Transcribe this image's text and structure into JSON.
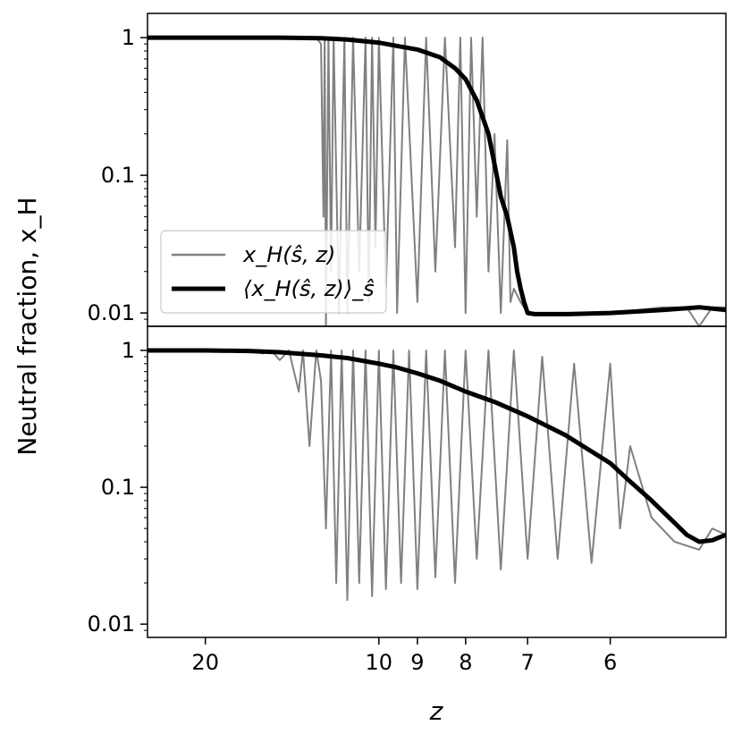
{
  "chart_data": [
    {
      "type": "line",
      "panel": "top",
      "yscale": "log",
      "ylim": [
        0.008,
        1.5
      ],
      "yticks": [
        0.01,
        0.1,
        1
      ],
      "ytick_labels": [
        "0.01",
        "0.1",
        "1"
      ],
      "ylabel": "Neutral fraction, x_H",
      "legend_placement": "lower-left",
      "series": [
        {
          "name": "x_H(ŝ, z)",
          "color": "#808080",
          "style": "thin",
          "x": [
            30,
            16,
            14,
            13.5,
            13,
            12.5,
            12.2,
            12.0,
            11.9,
            11.85,
            11.8,
            11.7,
            11.6,
            11.5,
            11.3,
            11.1,
            11.0,
            10.8,
            10.6,
            10.4,
            10.3,
            10.2,
            10.1,
            10.0,
            9.8,
            9.6,
            9.5,
            9.3,
            9.0,
            8.8,
            8.6,
            8.4,
            8.2,
            8.1,
            8.0,
            7.9,
            7.8,
            7.7,
            7.6,
            7.5,
            7.4,
            7.3,
            7.25,
            7.2,
            7.1,
            7.05,
            7.0,
            6.8,
            6.5,
            6.0,
            5.5,
            5.3,
            5.2,
            5.1,
            5.0
          ],
          "y": [
            1.0,
            1.0,
            1.0,
            0.99,
            1.0,
            0.98,
            1.0,
            0.9,
            0.05,
            1.0,
            0.008,
            1.0,
            0.02,
            1.0,
            0.01,
            1.0,
            0.01,
            1.0,
            0.02,
            1.0,
            0.012,
            1.0,
            0.03,
            1.0,
            0.015,
            1.0,
            0.01,
            1.0,
            0.012,
            1.0,
            0.02,
            1.0,
            0.03,
            1.0,
            0.01,
            1.0,
            0.05,
            1.0,
            0.02,
            0.2,
            0.01,
            0.18,
            0.012,
            0.015,
            0.012,
            0.011,
            0.01,
            0.01,
            0.01,
            0.01,
            0.011,
            0.011,
            0.008,
            0.011,
            0.011
          ]
        },
        {
          "name": "⟨x_H(ŝ, z)⟩_ŝ",
          "color": "#000000",
          "style": "thick",
          "x": [
            30,
            20,
            16,
            14,
            12,
            11,
            10,
            9.5,
            9.0,
            8.5,
            8.2,
            8.0,
            7.8,
            7.6,
            7.5,
            7.4,
            7.3,
            7.2,
            7.15,
            7.1,
            7.05,
            7.0,
            6.9,
            6.5,
            6.0,
            5.5,
            5.2,
            5.0
          ],
          "y": [
            1.0,
            1.0,
            1.0,
            1.0,
            0.99,
            0.97,
            0.92,
            0.87,
            0.82,
            0.72,
            0.6,
            0.5,
            0.35,
            0.2,
            0.12,
            0.07,
            0.05,
            0.03,
            0.02,
            0.015,
            0.012,
            0.01,
            0.0098,
            0.0098,
            0.01,
            0.0105,
            0.011,
            0.0105
          ]
        }
      ]
    },
    {
      "type": "line",
      "panel": "bottom",
      "yscale": "log",
      "ylim": [
        0.008,
        1.5
      ],
      "yticks": [
        0.01,
        0.1,
        1
      ],
      "ytick_labels": [
        "0.01",
        "0.1",
        "1"
      ],
      "xscale": "reciprocal",
      "xlim": [
        30,
        5.0
      ],
      "xticks": [
        20,
        10,
        9,
        8,
        7,
        6
      ],
      "xtick_labels": [
        "20",
        "10",
        "9",
        "8",
        "7",
        "6"
      ],
      "xlabel": "z",
      "series": [
        {
          "name": "x_H(ŝ, z)",
          "color": "#808080",
          "style": "thin",
          "x": [
            30,
            20,
            16,
            15,
            14.5,
            14,
            13.5,
            13,
            12.8,
            12.5,
            12.2,
            12.0,
            11.8,
            11.6,
            11.4,
            11.2,
            11.0,
            10.8,
            10.6,
            10.4,
            10.2,
            10.0,
            9.8,
            9.6,
            9.4,
            9.2,
            9.0,
            8.8,
            8.6,
            8.4,
            8.2,
            8.0,
            7.8,
            7.6,
            7.4,
            7.2,
            7.0,
            6.8,
            6.6,
            6.4,
            6.2,
            6.0,
            5.9,
            5.8,
            5.6,
            5.4,
            5.2,
            5.1,
            5.0
          ],
          "y": [
            1.0,
            1.0,
            1.0,
            0.95,
            1.0,
            0.85,
            1.0,
            0.5,
            1.0,
            0.2,
            1.0,
            0.6,
            0.05,
            1.0,
            0.02,
            1.0,
            0.015,
            1.0,
            0.02,
            1.0,
            0.016,
            1.0,
            0.018,
            1.0,
            0.02,
            1.0,
            0.018,
            1.0,
            0.022,
            1.0,
            0.02,
            1.0,
            0.03,
            1.0,
            0.025,
            1.0,
            0.03,
            0.9,
            0.03,
            0.8,
            0.028,
            0.8,
            0.05,
            0.2,
            0.06,
            0.04,
            0.035,
            0.05,
            0.045
          ]
        },
        {
          "name": "⟨x_H(ŝ, z)⟩_ŝ",
          "color": "#000000",
          "style": "thick",
          "x": [
            30,
            20,
            16,
            14,
            12,
            11,
            10,
            9.5,
            9.0,
            8.5,
            8.0,
            7.5,
            7.0,
            6.5,
            6.0,
            5.8,
            5.6,
            5.4,
            5.3,
            5.2,
            5.1,
            5.0
          ],
          "y": [
            1.0,
            1.0,
            0.99,
            0.97,
            0.92,
            0.88,
            0.8,
            0.75,
            0.68,
            0.6,
            0.5,
            0.42,
            0.33,
            0.24,
            0.15,
            0.11,
            0.08,
            0.055,
            0.045,
            0.04,
            0.041,
            0.045
          ]
        }
      ]
    }
  ]
}
